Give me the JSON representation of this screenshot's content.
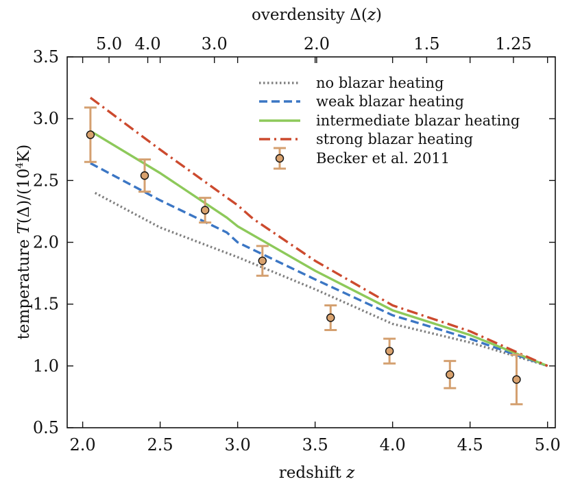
{
  "chart_data": {
    "type": "line",
    "xlabel": "redshift z",
    "ylabel": "temperature T(Δ)/(10⁴K)",
    "top_xlabel": "overdensity Δ(z)",
    "xlim": [
      1.9,
      5.05
    ],
    "ylim": [
      0.5,
      3.5
    ],
    "x_ticks": [
      "2.0",
      "2.5",
      "3.0",
      "3.5",
      "4.0",
      "4.5",
      "5.0"
    ],
    "y_ticks": [
      "0.5",
      "1.0",
      "1.5",
      "2.0",
      "2.5",
      "3.0",
      "3.5"
    ],
    "top_ticks": [
      {
        "label": "5.0",
        "z": 2.17
      },
      {
        "label": "4.0",
        "z": 2.42
      },
      {
        "label": "3.0",
        "z": 2.85
      },
      {
        "label": "2.0",
        "z": 3.51
      },
      {
        "label": "1.5",
        "z": 4.22
      },
      {
        "label": "1.25",
        "z": 4.78
      }
    ],
    "legend_position": "top-right",
    "series": [
      {
        "name": "no blazar heating",
        "style": "dotted",
        "color": "#808080",
        "x": [
          2.08,
          2.5,
          3.0,
          3.5,
          4.0,
          4.5,
          5.0
        ],
        "y": [
          2.4,
          2.12,
          1.88,
          1.62,
          1.34,
          1.19,
          1.0
        ]
      },
      {
        "name": "weak blazar heating",
        "style": "dashed",
        "color": "#3b76c4",
        "x": [
          2.05,
          2.5,
          2.93,
          3.0,
          3.5,
          4.0,
          4.5,
          5.0
        ],
        "y": [
          2.64,
          2.34,
          2.08,
          2.0,
          1.7,
          1.41,
          1.22,
          1.0
        ]
      },
      {
        "name": "intermediate blazar heating",
        "style": "solid",
        "color": "#8dc95a",
        "x": [
          2.05,
          2.5,
          2.93,
          3.0,
          3.5,
          4.0,
          4.5,
          5.0
        ],
        "y": [
          2.9,
          2.56,
          2.2,
          2.13,
          1.77,
          1.45,
          1.25,
          1.0
        ]
      },
      {
        "name": "strong blazar heating",
        "style": "dashdot",
        "color": "#cc4a2e",
        "x": [
          2.05,
          2.5,
          3.0,
          3.1,
          3.5,
          4.0,
          4.5,
          5.0
        ],
        "y": [
          3.17,
          2.75,
          2.3,
          2.19,
          1.85,
          1.49,
          1.28,
          1.0
        ]
      }
    ],
    "points": {
      "name": "Becker et al. 2011",
      "color": "#d9a26e",
      "error_color": "#d4a070",
      "x": [
        2.05,
        2.4,
        2.79,
        3.16,
        3.6,
        3.98,
        4.37,
        4.8
      ],
      "y": [
        2.87,
        2.54,
        2.26,
        1.85,
        1.39,
        1.12,
        0.93,
        0.89
      ],
      "err": [
        0.22,
        0.13,
        0.1,
        0.12,
        0.1,
        0.1,
        0.11,
        0.2
      ]
    }
  }
}
